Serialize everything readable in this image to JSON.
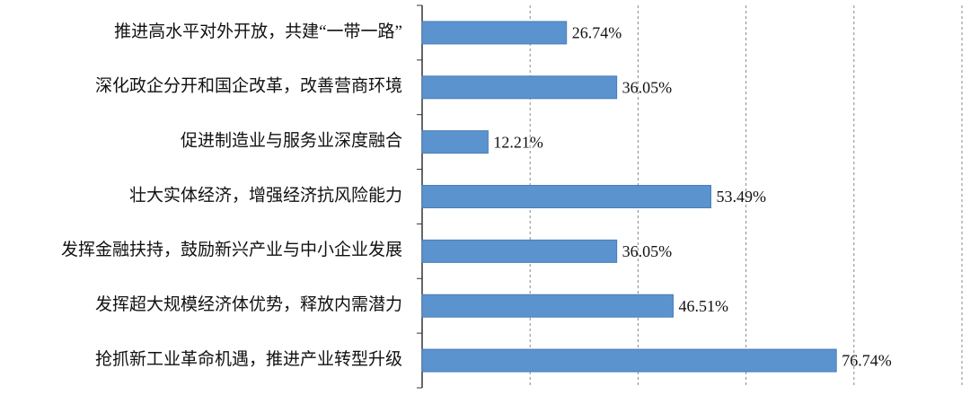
{
  "chart_data": {
    "type": "bar",
    "orientation": "horizontal",
    "categories": [
      "推进高水平对外开放，共建“一带一路”",
      "深化政企分开和国企改革，改善营商环境",
      "促进制造业与服务业深度融合",
      "壮大实体经济，增强经济抗风险能力",
      "发挥金融扶持，鼓励新兴产业与中小企业发展",
      "发挥超大规模经济体优势，释放内需潜力",
      "抢抓新工业革命机遇，推进产业转型升级"
    ],
    "values": [
      26.74,
      36.05,
      12.21,
      53.49,
      36.05,
      46.51,
      76.74
    ],
    "value_labels": [
      "26.74%",
      "36.05%",
      "12.21%",
      "53.49%",
      "36.05%",
      "46.51%",
      "76.74%"
    ],
    "color": "#5b93cf",
    "xlim": [
      0,
      100
    ],
    "xticks": [
      20,
      40,
      60,
      80,
      100
    ],
    "grid": true
  }
}
